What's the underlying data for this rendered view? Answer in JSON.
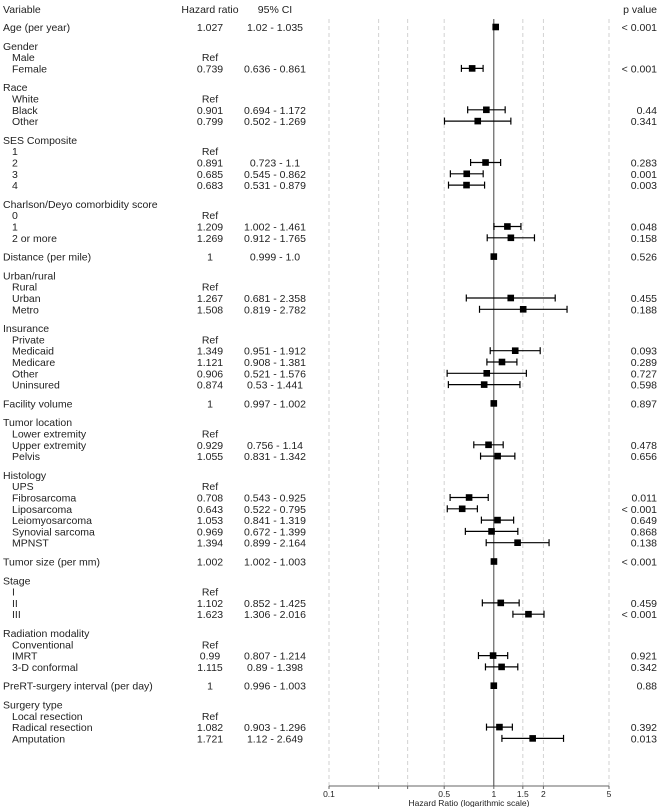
{
  "headers": {
    "variable": "Variable",
    "hr": "Hazard ratio",
    "ci": "95% CI",
    "p": "p value"
  },
  "chart_data": {
    "type": "forest",
    "xlabel": "Hazard Ratio (logarithmic scale)",
    "x_scale": "log",
    "xlim": [
      0.1,
      5
    ],
    "x_ticks": [
      {
        "value": 0.1,
        "label": "0.1"
      },
      {
        "value": 0.2,
        "label": ""
      },
      {
        "value": 0.3,
        "label": ""
      },
      {
        "value": 0.5,
        "label": "0.5"
      },
      {
        "value": 1,
        "label": "1"
      },
      {
        "value": 1.5,
        "label": "1.5"
      },
      {
        "value": 2,
        "label": "2"
      },
      {
        "value": 5,
        "label": "5"
      }
    ],
    "reference_line": 1,
    "marker_color": "#000000",
    "rows": [
      {
        "label": "Age (per year)",
        "type": "var",
        "hr": 1.027,
        "hr_text": "1.027",
        "ci_text": "1.02 - 1.035",
        "lo": 1.02,
        "hi": 1.035,
        "p": "< 0.001"
      },
      {
        "label": "Gender",
        "type": "group"
      },
      {
        "label": "Male",
        "type": "sub",
        "hr_text": "Ref"
      },
      {
        "label": "Female",
        "type": "sub",
        "hr": 0.739,
        "hr_text": "0.739",
        "ci_text": "0.636 - 0.861",
        "lo": 0.636,
        "hi": 0.861,
        "p": "< 0.001"
      },
      {
        "label": "Race",
        "type": "group"
      },
      {
        "label": "White",
        "type": "sub",
        "hr_text": "Ref"
      },
      {
        "label": "Black",
        "type": "sub",
        "hr": 0.901,
        "hr_text": "0.901",
        "ci_text": "0.694 - 1.172",
        "lo": 0.694,
        "hi": 1.172,
        "p": "0.44"
      },
      {
        "label": "Other",
        "type": "sub",
        "hr": 0.799,
        "hr_text": "0.799",
        "ci_text": "0.502 - 1.269",
        "lo": 0.502,
        "hi": 1.269,
        "p": "0.341"
      },
      {
        "label": "SES Composite",
        "type": "group"
      },
      {
        "label": "1",
        "type": "sub",
        "hr_text": "Ref"
      },
      {
        "label": "2",
        "type": "sub",
        "hr": 0.891,
        "hr_text": "0.891",
        "ci_text": "0.723 - 1.1",
        "lo": 0.723,
        "hi": 1.1,
        "p": "0.283"
      },
      {
        "label": "3",
        "type": "sub",
        "hr": 0.685,
        "hr_text": "0.685",
        "ci_text": "0.545 - 0.862",
        "lo": 0.545,
        "hi": 0.862,
        "p": "0.001"
      },
      {
        "label": "4",
        "type": "sub",
        "hr": 0.683,
        "hr_text": "0.683",
        "ci_text": "0.531 - 0.879",
        "lo": 0.531,
        "hi": 0.879,
        "p": "0.003"
      },
      {
        "label": "Charlson/Deyo comorbidity score",
        "type": "group"
      },
      {
        "label": "0",
        "type": "sub",
        "hr_text": "Ref"
      },
      {
        "label": "1",
        "type": "sub",
        "hr": 1.209,
        "hr_text": "1.209",
        "ci_text": "1.002 - 1.461",
        "lo": 1.002,
        "hi": 1.461,
        "p": "0.048"
      },
      {
        "label": "2 or more",
        "type": "sub",
        "hr": 1.269,
        "hr_text": "1.269",
        "ci_text": "0.912 - 1.765",
        "lo": 0.912,
        "hi": 1.765,
        "p": "0.158"
      },
      {
        "label": "Distance (per mile)",
        "type": "var",
        "hr": 1,
        "hr_text": "1",
        "ci_text": "0.999 - 1.0",
        "lo": 0.999,
        "hi": 1.0,
        "p": "0.526"
      },
      {
        "label": "Urban/rural",
        "type": "group"
      },
      {
        "label": "Rural",
        "type": "sub",
        "hr_text": "Ref"
      },
      {
        "label": "Urban",
        "type": "sub",
        "hr": 1.267,
        "hr_text": "1.267",
        "ci_text": "0.681 - 2.358",
        "lo": 0.681,
        "hi": 2.358,
        "p": "0.455"
      },
      {
        "label": "Metro",
        "type": "sub",
        "hr": 1.508,
        "hr_text": "1.508",
        "ci_text": "0.819 - 2.782",
        "lo": 0.819,
        "hi": 2.782,
        "p": "0.188"
      },
      {
        "label": "Insurance",
        "type": "group"
      },
      {
        "label": "Private",
        "type": "sub",
        "hr_text": "Ref"
      },
      {
        "label": "Medicaid",
        "type": "sub",
        "hr": 1.349,
        "hr_text": "1.349",
        "ci_text": "0.951 - 1.912",
        "lo": 0.951,
        "hi": 1.912,
        "p": "0.093"
      },
      {
        "label": "Medicare",
        "type": "sub",
        "hr": 1.121,
        "hr_text": "1.121",
        "ci_text": "0.908 - 1.381",
        "lo": 0.908,
        "hi": 1.381,
        "p": "0.289"
      },
      {
        "label": "Other",
        "type": "sub",
        "hr": 0.906,
        "hr_text": "0.906",
        "ci_text": "0.521 - 1.576",
        "lo": 0.521,
        "hi": 1.576,
        "p": "0.727"
      },
      {
        "label": "Uninsured",
        "type": "sub",
        "hr": 0.874,
        "hr_text": "0.874",
        "ci_text": "0.53 - 1.441",
        "lo": 0.53,
        "hi": 1.441,
        "p": "0.598"
      },
      {
        "label": "Facility volume",
        "type": "var",
        "hr": 1,
        "hr_text": "1",
        "ci_text": "0.997 - 1.002",
        "lo": 0.997,
        "hi": 1.002,
        "p": "0.897"
      },
      {
        "label": "Tumor location",
        "type": "group"
      },
      {
        "label": "Lower extremity",
        "type": "sub",
        "hr_text": "Ref"
      },
      {
        "label": "Upper extremity",
        "type": "sub",
        "hr": 0.929,
        "hr_text": "0.929",
        "ci_text": "0.756 - 1.14",
        "lo": 0.756,
        "hi": 1.14,
        "p": "0.478"
      },
      {
        "label": "Pelvis",
        "type": "sub",
        "hr": 1.055,
        "hr_text": "1.055",
        "ci_text": "0.831 - 1.342",
        "lo": 0.831,
        "hi": 1.342,
        "p": "0.656"
      },
      {
        "label": "Histology",
        "type": "group"
      },
      {
        "label": "UPS",
        "type": "sub",
        "hr_text": "Ref"
      },
      {
        "label": "Fibrosarcoma",
        "type": "sub",
        "hr": 0.708,
        "hr_text": "0.708",
        "ci_text": "0.543 - 0.925",
        "lo": 0.543,
        "hi": 0.925,
        "p": "0.011"
      },
      {
        "label": "Liposarcoma",
        "type": "sub",
        "hr": 0.643,
        "hr_text": "0.643",
        "ci_text": "0.522 - 0.795",
        "lo": 0.522,
        "hi": 0.795,
        "p": "< 0.001"
      },
      {
        "label": "Leiomyosarcoma",
        "type": "sub",
        "hr": 1.053,
        "hr_text": "1.053",
        "ci_text": "0.841 - 1.319",
        "lo": 0.841,
        "hi": 1.319,
        "p": "0.649"
      },
      {
        "label": "Synovial sarcoma",
        "type": "sub",
        "hr": 0.969,
        "hr_text": "0.969",
        "ci_text": "0.672 - 1.399",
        "lo": 0.672,
        "hi": 1.399,
        "p": "0.868"
      },
      {
        "label": "MPNST",
        "type": "sub",
        "hr": 1.394,
        "hr_text": "1.394",
        "ci_text": "0.899 - 2.164",
        "lo": 0.899,
        "hi": 2.164,
        "p": "0.138"
      },
      {
        "label": "Tumor size (per mm)",
        "type": "var",
        "hr": 1.002,
        "hr_text": "1.002",
        "ci_text": "1.002 - 1.003",
        "lo": 1.002,
        "hi": 1.003,
        "p": "< 0.001"
      },
      {
        "label": "Stage",
        "type": "group"
      },
      {
        "label": "I",
        "type": "sub",
        "hr_text": "Ref"
      },
      {
        "label": "II",
        "type": "sub",
        "hr": 1.102,
        "hr_text": "1.102",
        "ci_text": "0.852 - 1.425",
        "lo": 0.852,
        "hi": 1.425,
        "p": "0.459"
      },
      {
        "label": "III",
        "type": "sub",
        "hr": 1.623,
        "hr_text": "1.623",
        "ci_text": "1.306 - 2.016",
        "lo": 1.306,
        "hi": 2.016,
        "p": "< 0.001"
      },
      {
        "label": "Radiation modality",
        "type": "group"
      },
      {
        "label": "Conventional",
        "type": "sub",
        "hr_text": "Ref"
      },
      {
        "label": "IMRT",
        "type": "sub",
        "hr": 0.99,
        "hr_text": "0.99",
        "ci_text": "0.807 - 1.214",
        "lo": 0.807,
        "hi": 1.214,
        "p": "0.921"
      },
      {
        "label": "3-D conformal",
        "type": "sub",
        "hr": 1.115,
        "hr_text": "1.115",
        "ci_text": "0.89 - 1.398",
        "lo": 0.89,
        "hi": 1.398,
        "p": "0.342"
      },
      {
        "label": "PreRT-surgery interval (per day)",
        "type": "var",
        "hr": 1,
        "hr_text": "1",
        "ci_text": "0.996 - 1.003",
        "lo": 0.996,
        "hi": 1.003,
        "p": "0.88"
      },
      {
        "label": "Surgery type",
        "type": "group"
      },
      {
        "label": "Local resection",
        "type": "sub",
        "hr_text": "Ref"
      },
      {
        "label": "Radical resection",
        "type": "sub",
        "hr": 1.082,
        "hr_text": "1.082",
        "ci_text": "0.903 - 1.296",
        "lo": 0.903,
        "hi": 1.296,
        "p": "0.392"
      },
      {
        "label": "Amputation",
        "type": "sub",
        "hr": 1.721,
        "hr_text": "1.721",
        "ci_text": "1.12 - 2.649",
        "lo": 1.12,
        "hi": 2.649,
        "p": "0.013"
      }
    ]
  }
}
